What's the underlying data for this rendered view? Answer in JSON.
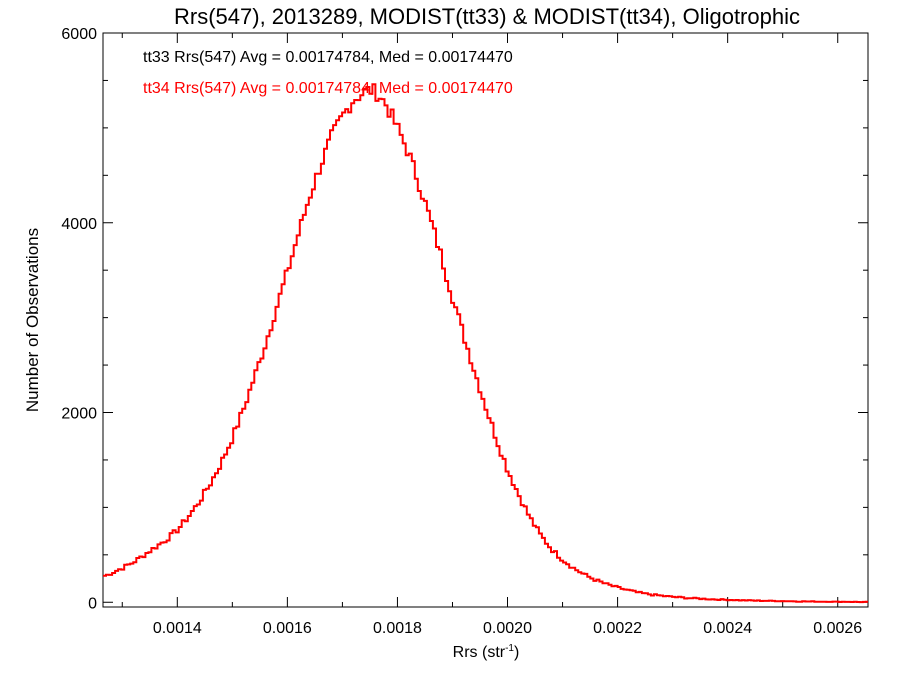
{
  "chart_data": {
    "type": "line",
    "title": "Rrs(547), 2013289, MODIST(tt33) & MODIST(tt34), Oligotrophic",
    "xlabel": "Rrs (str",
    "xlabel_sup": "-1",
    "xlabel_close": ")",
    "ylabel": "Number of Observations",
    "xlim": [
      0.001265,
      0.002655
    ],
    "ylim": [
      -50,
      6000
    ],
    "x_ticks": [
      0.0014,
      0.0016,
      0.0018,
      0.002,
      0.0022,
      0.0024,
      0.0026
    ],
    "x_tick_labels": [
      "0.0014",
      "0.0016",
      "0.0018",
      "0.0020",
      "0.0022",
      "0.0024",
      "0.0026"
    ],
    "y_ticks": [
      0,
      2000,
      4000,
      6000
    ],
    "y_tick_labels": [
      "0",
      "2000",
      "4000",
      "6000"
    ],
    "annotations": [
      {
        "text": "tt33 Rrs(547) Avg = 0.00174784, Med = 0.00174470",
        "color": "#000000"
      },
      {
        "text": "tt34 Rrs(547) Avg = 0.00174784, Med = 0.00174470",
        "color": "#ff0000"
      }
    ],
    "series": [
      {
        "color": "#ff0000",
        "step": true,
        "x": [
          0.00127,
          0.0013,
          0.00132,
          0.00134,
          0.00136,
          0.00138,
          0.0014,
          0.00142,
          0.00144,
          0.00146,
          0.00148,
          0.0015,
          0.00152,
          0.00154,
          0.00156,
          0.00158,
          0.0016,
          0.00162,
          0.00164,
          0.00166,
          0.00168,
          0.0017,
          0.00172,
          0.00174,
          0.00175,
          0.00176,
          0.00177,
          0.00178,
          0.0018,
          0.00182,
          0.00184,
          0.00186,
          0.00188,
          0.0019,
          0.00192,
          0.00194,
          0.00196,
          0.00198,
          0.002,
          0.00202,
          0.00204,
          0.00206,
          0.00208,
          0.0021,
          0.00212,
          0.00214,
          0.00216,
          0.00218,
          0.0022,
          0.00222,
          0.00224,
          0.00226,
          0.00228,
          0.0023,
          0.00232,
          0.00234,
          0.00236,
          0.00238,
          0.0024,
          0.00242,
          0.00244,
          0.00246,
          0.00248,
          0.0025,
          0.00252,
          0.00254,
          0.00256,
          0.00258,
          0.0026,
          0.00262,
          0.00264,
          0.00266
        ],
        "y": [
          280,
          360,
          420,
          500,
          580,
          660,
          760,
          900,
          1060,
          1250,
          1470,
          1730,
          2030,
          2370,
          2720,
          3100,
          3480,
          3880,
          4270,
          4600,
          4900,
          5120,
          5300,
          5380,
          5400,
          5380,
          5320,
          5240,
          5000,
          4740,
          4400,
          4030,
          3640,
          3220,
          2820,
          2440,
          2070,
          1720,
          1400,
          1140,
          900,
          710,
          560,
          450,
          360,
          290,
          235,
          190,
          155,
          125,
          100,
          82,
          68,
          57,
          48,
          41,
          35,
          30,
          26,
          22,
          19,
          16,
          14,
          12,
          10,
          8,
          7,
          6,
          5,
          4,
          3,
          3
        ]
      }
    ]
  }
}
